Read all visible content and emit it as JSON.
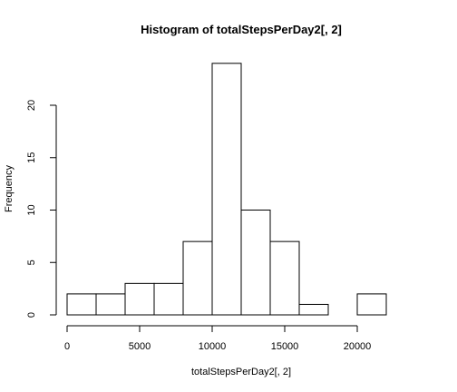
{
  "chart_data": {
    "type": "bar",
    "title": "Histogram of totalStepsPerDay2[, 2]",
    "xlabel": "totalStepsPerDay2[, 2]",
    "ylabel": "Frequency",
    "bins": [
      {
        "from": 0,
        "to": 2000,
        "count": 2
      },
      {
        "from": 2000,
        "to": 4000,
        "count": 2
      },
      {
        "from": 4000,
        "to": 6000,
        "count": 3
      },
      {
        "from": 6000,
        "to": 8000,
        "count": 3
      },
      {
        "from": 8000,
        "to": 10000,
        "count": 7
      },
      {
        "from": 10000,
        "to": 12000,
        "count": 24
      },
      {
        "from": 12000,
        "to": 14000,
        "count": 10
      },
      {
        "from": 14000,
        "to": 16000,
        "count": 7
      },
      {
        "from": 16000,
        "to": 18000,
        "count": 1
      },
      {
        "from": 18000,
        "to": 20000,
        "count": 0
      },
      {
        "from": 20000,
        "to": 22000,
        "count": 2
      }
    ],
    "xlim": [
      0,
      24000
    ],
    "ylim": [
      0,
      24
    ],
    "xticks": [
      0,
      5000,
      10000,
      15000,
      20000
    ],
    "xtick_labels": [
      "0",
      "5000",
      "10000",
      "15000",
      "20000"
    ],
    "yticks": [
      0,
      5,
      10,
      15,
      20
    ],
    "ytick_labels": [
      "0",
      "5",
      "10",
      "15",
      "20"
    ],
    "grid": false,
    "legend": "none",
    "bar_fill": "#ffffff",
    "bar_stroke": "#000000"
  }
}
